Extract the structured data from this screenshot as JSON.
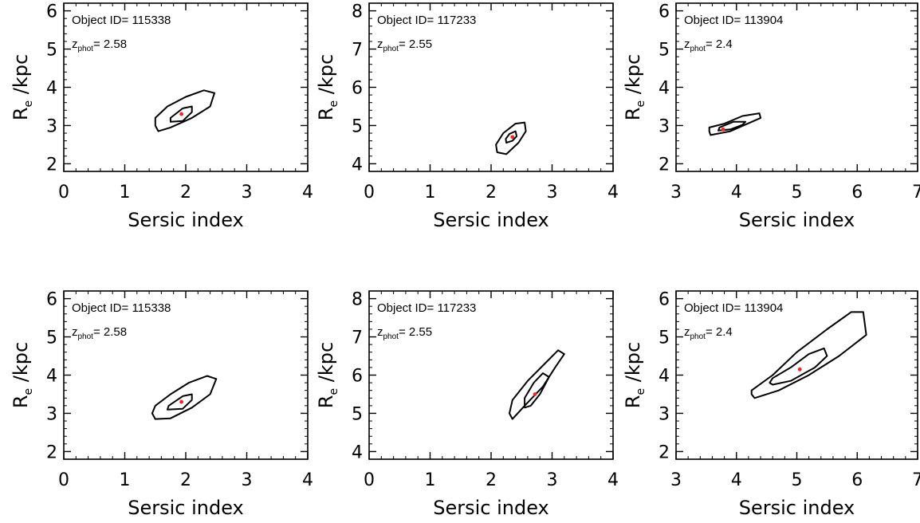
{
  "chart_data": [
    {
      "type": "contour",
      "xlabel": "Sersic index",
      "ylabel": {
        "main": "R",
        "sub": "e",
        "rest": " /kpc"
      },
      "xlim": [
        0,
        4
      ],
      "ylim": [
        1.8,
        6.2
      ],
      "xticks": [
        0,
        1,
        2,
        3,
        4
      ],
      "yticks": [
        2,
        3,
        4,
        5,
        6
      ],
      "annotation": {
        "id_label": "Object ID= 115338",
        "z_main": "z",
        "z_sub": "phot",
        "z_value": "= 2.58"
      },
      "best_fit": {
        "x": 1.93,
        "y": 3.3,
        "color": "#ff2020"
      },
      "contours": [
        {
          "level": "outer",
          "points": [
            [
              1.5,
              3.0
            ],
            [
              1.55,
              2.85
            ],
            [
              1.75,
              2.95
            ],
            [
              2.1,
              3.2
            ],
            [
              2.4,
              3.5
            ],
            [
              2.47,
              3.85
            ],
            [
              2.3,
              3.92
            ],
            [
              2.0,
              3.75
            ],
            [
              1.7,
              3.5
            ],
            [
              1.5,
              3.2
            ]
          ]
        },
        {
          "level": "inner",
          "points": [
            [
              1.75,
              3.1
            ],
            [
              1.95,
              3.12
            ],
            [
              2.1,
              3.35
            ],
            [
              2.1,
              3.5
            ],
            [
              1.95,
              3.45
            ],
            [
              1.75,
              3.2
            ]
          ]
        }
      ]
    },
    {
      "type": "contour",
      "xlabel": "Sersic index",
      "ylabel": {
        "main": "R",
        "sub": "e",
        "rest": " /kpc"
      },
      "xlim": [
        0,
        4
      ],
      "ylim": [
        3.8,
        8.2
      ],
      "xticks": [
        0,
        1,
        2,
        3,
        4
      ],
      "yticks": [
        4,
        5,
        6,
        7,
        8
      ],
      "annotation": {
        "id_label": "Object ID= 117233",
        "z_main": "z",
        "z_sub": "phot",
        "z_value": "= 2.55"
      },
      "best_fit": {
        "x": 2.35,
        "y": 4.7,
        "color": "#ff2020"
      },
      "contours": [
        {
          "level": "outer",
          "points": [
            [
              2.1,
              4.3
            ],
            [
              2.25,
              4.25
            ],
            [
              2.45,
              4.55
            ],
            [
              2.57,
              4.85
            ],
            [
              2.55,
              5.08
            ],
            [
              2.4,
              5.05
            ],
            [
              2.2,
              4.8
            ],
            [
              2.08,
              4.5
            ]
          ]
        },
        {
          "level": "inner",
          "points": [
            [
              2.25,
              4.55
            ],
            [
              2.35,
              4.6
            ],
            [
              2.42,
              4.72
            ],
            [
              2.4,
              4.85
            ],
            [
              2.3,
              4.78
            ],
            [
              2.24,
              4.65
            ]
          ]
        }
      ]
    },
    {
      "type": "contour",
      "xlabel": "Sersic index",
      "ylabel": {
        "main": "R",
        "sub": "e",
        "rest": " /kpc"
      },
      "xlim": [
        3,
        7
      ],
      "ylim": [
        1.8,
        6.2
      ],
      "xticks": [
        3,
        4,
        5,
        6,
        7
      ],
      "yticks": [
        2,
        3,
        4,
        5,
        6
      ],
      "annotation": {
        "id_label": "Object ID= 113904",
        "z_main": "z",
        "z_sub": "phot",
        "z_value": "= 2.4"
      },
      "best_fit": {
        "x": 3.78,
        "y": 2.9,
        "color": "#ff2020"
      },
      "contours": [
        {
          "level": "outer",
          "points": [
            [
              3.55,
              2.85
            ],
            [
              3.57,
              2.75
            ],
            [
              3.9,
              2.85
            ],
            [
              4.4,
              3.2
            ],
            [
              4.38,
              3.32
            ],
            [
              4.1,
              3.25
            ],
            [
              3.8,
              3.05
            ],
            [
              3.55,
              2.95
            ]
          ]
        },
        {
          "level": "inner",
          "points": [
            [
              3.7,
              2.87
            ],
            [
              3.9,
              2.9
            ],
            [
              4.1,
              3.02
            ],
            [
              4.15,
              3.1
            ],
            [
              3.95,
              3.1
            ],
            [
              3.72,
              2.95
            ]
          ]
        }
      ]
    },
    {
      "type": "contour",
      "xlabel": "Sersic index",
      "ylabel": {
        "main": "R",
        "sub": "e",
        "rest": " /kpc"
      },
      "xlim": [
        0,
        4
      ],
      "ylim": [
        1.8,
        6.2
      ],
      "xticks": [
        0,
        1,
        2,
        3,
        4
      ],
      "yticks": [
        2,
        3,
        4,
        5,
        6
      ],
      "annotation": {
        "id_label": "Object ID= 115338",
        "z_main": "z",
        "z_sub": "phot",
        "z_value": "= 2.58"
      },
      "best_fit": {
        "x": 1.93,
        "y": 3.3,
        "color": "#ff2020"
      },
      "contours": [
        {
          "level": "outer",
          "points": [
            [
              1.45,
              3.0
            ],
            [
              1.5,
              2.85
            ],
            [
              1.75,
              2.87
            ],
            [
              2.1,
              3.15
            ],
            [
              2.4,
              3.5
            ],
            [
              2.5,
              3.9
            ],
            [
              2.35,
              3.98
            ],
            [
              2.05,
              3.8
            ],
            [
              1.75,
              3.5
            ],
            [
              1.5,
              3.2
            ]
          ]
        },
        {
          "level": "inner",
          "points": [
            [
              1.7,
              3.1
            ],
            [
              1.95,
              3.12
            ],
            [
              2.1,
              3.35
            ],
            [
              2.1,
              3.5
            ],
            [
              1.95,
              3.45
            ],
            [
              1.72,
              3.2
            ]
          ]
        }
      ]
    },
    {
      "type": "contour",
      "xlabel": "Sersic index",
      "ylabel": {
        "main": "R",
        "sub": "e",
        "rest": " /kpc"
      },
      "xlim": [
        0,
        4
      ],
      "ylim": [
        3.8,
        8.2
      ],
      "xticks": [
        0,
        1,
        2,
        3,
        4
      ],
      "yticks": [
        4,
        5,
        6,
        7,
        8
      ],
      "annotation": {
        "id_label": "Object ID= 117233",
        "z_main": "z",
        "z_sub": "phot",
        "z_value": "= 2.55"
      },
      "best_fit": {
        "x": 2.72,
        "y": 5.5,
        "color": "#ff2020"
      },
      "contours": [
        {
          "level": "outer",
          "points": [
            [
              2.3,
              5.0
            ],
            [
              2.35,
              4.85
            ],
            [
              2.55,
              5.2
            ],
            [
              2.85,
              5.7
            ],
            [
              3.05,
              6.2
            ],
            [
              3.2,
              6.55
            ],
            [
              3.1,
              6.65
            ],
            [
              2.85,
              6.25
            ],
            [
              2.6,
              5.85
            ],
            [
              2.35,
              5.35
            ]
          ]
        },
        {
          "level": "inner",
          "points": [
            [
              2.55,
              5.15
            ],
            [
              2.65,
              5.2
            ],
            [
              2.8,
              5.5
            ],
            [
              2.95,
              5.95
            ],
            [
              2.85,
              6.05
            ],
            [
              2.7,
              5.8
            ],
            [
              2.55,
              5.4
            ]
          ]
        }
      ]
    },
    {
      "type": "contour",
      "xlabel": "Sersic index",
      "ylabel": {
        "main": "R",
        "sub": "e",
        "rest": " /kpc"
      },
      "xlim": [
        3,
        7
      ],
      "ylim": [
        1.8,
        6.2
      ],
      "xticks": [
        3,
        4,
        5,
        6,
        7
      ],
      "yticks": [
        2,
        3,
        4,
        5,
        6
      ],
      "annotation": {
        "id_label": "Object ID= 113904",
        "z_main": "z",
        "z_sub": "phot",
        "z_value": "= 2.4"
      },
      "best_fit": {
        "x": 5.05,
        "y": 4.15,
        "color": "#ff2020"
      },
      "contours": [
        {
          "level": "outer",
          "points": [
            [
              4.25,
              3.5
            ],
            [
              4.3,
              3.4
            ],
            [
              4.7,
              3.6
            ],
            [
              5.2,
              4.0
            ],
            [
              5.7,
              4.5
            ],
            [
              6.15,
              5.05
            ],
            [
              6.1,
              5.65
            ],
            [
              5.9,
              5.65
            ],
            [
              5.5,
              5.2
            ],
            [
              5.0,
              4.6
            ],
            [
              4.6,
              4.0
            ],
            [
              4.25,
              3.6
            ]
          ]
        },
        {
          "level": "inner",
          "points": [
            [
              4.55,
              3.8
            ],
            [
              4.6,
              3.75
            ],
            [
              4.9,
              3.85
            ],
            [
              5.3,
              4.2
            ],
            [
              5.5,
              4.5
            ],
            [
              5.45,
              4.7
            ],
            [
              5.2,
              4.55
            ],
            [
              4.9,
              4.2
            ],
            [
              4.6,
              3.92
            ]
          ]
        }
      ]
    }
  ]
}
